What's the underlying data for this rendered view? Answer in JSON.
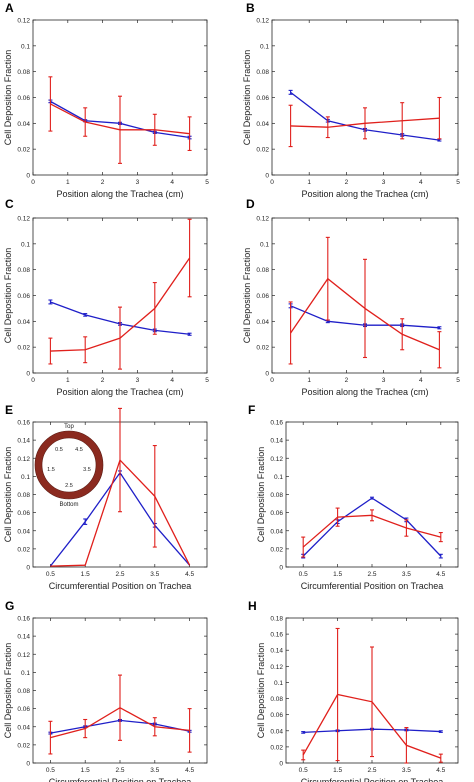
{
  "colors": {
    "blue": "#1f1fc8",
    "red": "#e0201c",
    "axis": "#262626",
    "ring": "#8b2a1f"
  },
  "chart_data": [
    {
      "label": "A",
      "type": "line",
      "xlabel": "Position along the Trachea (cm)",
      "ylabel": "Cell Deposition Fraction",
      "xlim": [
        0,
        5
      ],
      "ylim": [
        0,
        0.12
      ],
      "xticks": [
        "0",
        "1",
        "2",
        "3",
        "4",
        "5"
      ],
      "yticks": [
        "0",
        "0.02",
        "0.04",
        "0.06",
        "0.08",
        "0.1",
        "0.12"
      ],
      "series": [
        {
          "color": "blue",
          "x": [
            0.5,
            1.5,
            2.5,
            3.5,
            4.5
          ],
          "y": [
            0.057,
            0.042,
            0.04,
            0.033,
            0.029
          ],
          "err": [
            0.001,
            0.0008,
            0.0008,
            0.0008,
            0.001
          ]
        },
        {
          "color": "red",
          "x": [
            0.5,
            1.5,
            2.5,
            3.5,
            4.5
          ],
          "y": [
            0.055,
            0.041,
            0.035,
            0.035,
            0.032
          ],
          "err": [
            0.021,
            0.011,
            0.026,
            0.012,
            0.013
          ]
        }
      ]
    },
    {
      "label": "B",
      "type": "line",
      "xlabel": "Position along the Trachea (cm)",
      "ylabel": "Cell Deposition Fraction",
      "xlim": [
        0,
        5
      ],
      "ylim": [
        0,
        0.12
      ],
      "xticks": [
        "0",
        "1",
        "2",
        "3",
        "4",
        "5"
      ],
      "yticks": [
        "0",
        "0.02",
        "0.04",
        "0.06",
        "0.08",
        "0.1",
        "0.12"
      ],
      "series": [
        {
          "color": "blue",
          "x": [
            0.5,
            1.5,
            2.5,
            3.5,
            4.5
          ],
          "y": [
            0.064,
            0.042,
            0.035,
            0.031,
            0.027
          ],
          "err": [
            0.0015,
            0.001,
            0.001,
            0.001,
            0.0007
          ]
        },
        {
          "color": "red",
          "x": [
            0.5,
            1.5,
            2.5,
            3.5,
            4.5
          ],
          "y": [
            0.038,
            0.037,
            0.04,
            0.042,
            0.044
          ],
          "err": [
            0.016,
            0.008,
            0.012,
            0.014,
            0.016
          ]
        }
      ]
    },
    {
      "label": "C",
      "type": "line",
      "xlabel": "Position along the Trachea (cm)",
      "ylabel": "Cell Deposition Fraction",
      "xlim": [
        0,
        5
      ],
      "ylim": [
        0,
        0.12
      ],
      "xticks": [
        "0",
        "1",
        "2",
        "3",
        "4",
        "5"
      ],
      "yticks": [
        "0",
        "0.02",
        "0.04",
        "0.06",
        "0.08",
        "0.1",
        "0.12"
      ],
      "series": [
        {
          "color": "blue",
          "x": [
            0.5,
            1.5,
            2.5,
            3.5,
            4.5
          ],
          "y": [
            0.055,
            0.045,
            0.038,
            0.033,
            0.03
          ],
          "err": [
            0.0015,
            0.001,
            0.001,
            0.001,
            0.0008
          ]
        },
        {
          "color": "red",
          "x": [
            0.5,
            1.5,
            2.5,
            3.5,
            4.5
          ],
          "y": [
            0.017,
            0.018,
            0.027,
            0.05,
            0.089
          ],
          "err": [
            0.01,
            0.01,
            0.024,
            0.02,
            0.03
          ]
        }
      ]
    },
    {
      "label": "D",
      "type": "line",
      "xlabel": "Position along the Trachea (cm)",
      "ylabel": "Cell Deposition Fraction",
      "xlim": [
        0,
        5
      ],
      "ylim": [
        0,
        0.12
      ],
      "xticks": [
        "0",
        "1",
        "2",
        "3",
        "4",
        "5"
      ],
      "yticks": [
        "0",
        "0.02",
        "0.04",
        "0.06",
        "0.08",
        "0.1",
        "0.12"
      ],
      "series": [
        {
          "color": "blue",
          "x": [
            0.5,
            1.5,
            2.5,
            3.5,
            4.5
          ],
          "y": [
            0.052,
            0.04,
            0.037,
            0.037,
            0.035
          ],
          "err": [
            0.0015,
            0.001,
            0.001,
            0.001,
            0.0008
          ]
        },
        {
          "color": "red",
          "x": [
            0.5,
            1.5,
            2.5,
            3.5,
            4.5
          ],
          "y": [
            0.031,
            0.073,
            0.05,
            0.03,
            0.018
          ],
          "err": [
            0.024,
            0.032,
            0.038,
            0.012,
            0.014
          ]
        }
      ]
    },
    {
      "label": "E",
      "type": "line",
      "xlabel": "Circumferential Position on Trachea",
      "ylabel": "Cell Deposition Fraction",
      "xlim": [
        0,
        5
      ],
      "ylim": [
        0,
        0.16
      ],
      "xticks": [
        "0.5",
        "1.5",
        "2.5",
        "3.5",
        "4.5"
      ],
      "xtick_positions": [
        0.5,
        1.5,
        2.5,
        3.5,
        4.5
      ],
      "yticks": [
        "0",
        "0.02",
        "0.04",
        "0.06",
        "0.08",
        "0.1",
        "0.12",
        "0.14",
        "0.16"
      ],
      "inset": {
        "top": "Top",
        "bottom": "Bottom",
        "labels": [
          "0.5",
          "4.5",
          "1.5",
          "3.5",
          "2.5"
        ]
      },
      "series": [
        {
          "color": "blue",
          "x": [
            0.5,
            1.5,
            2.5,
            3.5,
            4.5
          ],
          "y": [
            0.001,
            0.05,
            0.104,
            0.046,
            0.002
          ],
          "err": [
            0,
            0.003,
            0.002,
            0.002,
            0
          ]
        },
        {
          "color": "red",
          "x": [
            0.5,
            1.5,
            2.5,
            3.5,
            4.5
          ],
          "y": [
            0.001,
            0.002,
            0.118,
            0.078,
            0.002
          ],
          "err": [
            0,
            0,
            0.057,
            0.056,
            0
          ]
        }
      ]
    },
    {
      "label": "F",
      "type": "line",
      "xlabel": "Circumferential Position on Trachea",
      "ylabel": "Cell Deposition Fraction",
      "xlim": [
        0,
        5
      ],
      "ylim": [
        0,
        0.16
      ],
      "xticks": [
        "0.5",
        "1.5",
        "2.5",
        "3.5",
        "4.5"
      ],
      "xtick_positions": [
        0.5,
        1.5,
        2.5,
        3.5,
        4.5
      ],
      "yticks": [
        "0",
        "0.02",
        "0.04",
        "0.06",
        "0.08",
        "0.1",
        "0.12",
        "0.14",
        "0.16"
      ],
      "series": [
        {
          "color": "blue",
          "x": [
            0.5,
            1.5,
            2.5,
            3.5,
            4.5
          ],
          "y": [
            0.012,
            0.05,
            0.076,
            0.052,
            0.012
          ],
          "err": [
            0.002,
            0.002,
            0.001,
            0.002,
            0.002
          ]
        },
        {
          "color": "red",
          "x": [
            0.5,
            1.5,
            2.5,
            3.5,
            4.5
          ],
          "y": [
            0.022,
            0.055,
            0.057,
            0.043,
            0.033
          ],
          "err": [
            0.011,
            0.01,
            0.006,
            0.009,
            0.005
          ]
        }
      ]
    },
    {
      "label": "G",
      "type": "line",
      "xlabel": "Circumferential Position on Trachea",
      "ylabel": "Cell Deposition Fraction",
      "xlim": [
        0,
        5
      ],
      "ylim": [
        0,
        0.16
      ],
      "xticks": [
        "0.5",
        "1.5",
        "2.5",
        "3.5",
        "4.5"
      ],
      "xtick_positions": [
        0.5,
        1.5,
        2.5,
        3.5,
        4.5
      ],
      "yticks": [
        "0",
        "0.02",
        "0.04",
        "0.06",
        "0.08",
        "0.1",
        "0.12",
        "0.14",
        "0.16"
      ],
      "series": [
        {
          "color": "blue",
          "x": [
            0.5,
            1.5,
            2.5,
            3.5,
            4.5
          ],
          "y": [
            0.033,
            0.04,
            0.047,
            0.043,
            0.035
          ],
          "err": [
            0.001,
            0.001,
            0.001,
            0.001,
            0.001
          ]
        },
        {
          "color": "red",
          "x": [
            0.5,
            1.5,
            2.5,
            3.5,
            4.5
          ],
          "y": [
            0.028,
            0.038,
            0.061,
            0.04,
            0.036
          ],
          "err": [
            0.018,
            0.01,
            0.036,
            0.01,
            0.024
          ]
        }
      ]
    },
    {
      "label": "H",
      "type": "line",
      "xlabel": "Circumferential Position on Trachea",
      "ylabel": "Cell Deposition Fraction",
      "xlim": [
        0,
        5
      ],
      "ylim": [
        0,
        0.18
      ],
      "xticks": [
        "0.5",
        "1.5",
        "2.5",
        "3.5",
        "4.5"
      ],
      "xtick_positions": [
        0.5,
        1.5,
        2.5,
        3.5,
        4.5
      ],
      "yticks": [
        "0",
        "0.02",
        "0.04",
        "0.06",
        "0.08",
        "0.1",
        "0.12",
        "0.14",
        "0.16",
        "0.18"
      ],
      "series": [
        {
          "color": "blue",
          "x": [
            0.5,
            1.5,
            2.5,
            3.5,
            4.5
          ],
          "y": [
            0.038,
            0.04,
            0.042,
            0.041,
            0.039
          ],
          "err": [
            0.001,
            0.001,
            0.001,
            0.001,
            0.001
          ]
        },
        {
          "color": "red",
          "x": [
            0.5,
            1.5,
            2.5,
            3.5,
            4.5
          ],
          "y": [
            0.01,
            0.085,
            0.076,
            0.022,
            0.006
          ],
          "err": [
            0.006,
            0.082,
            0.068,
            0.022,
            0.005
          ]
        }
      ]
    }
  ]
}
